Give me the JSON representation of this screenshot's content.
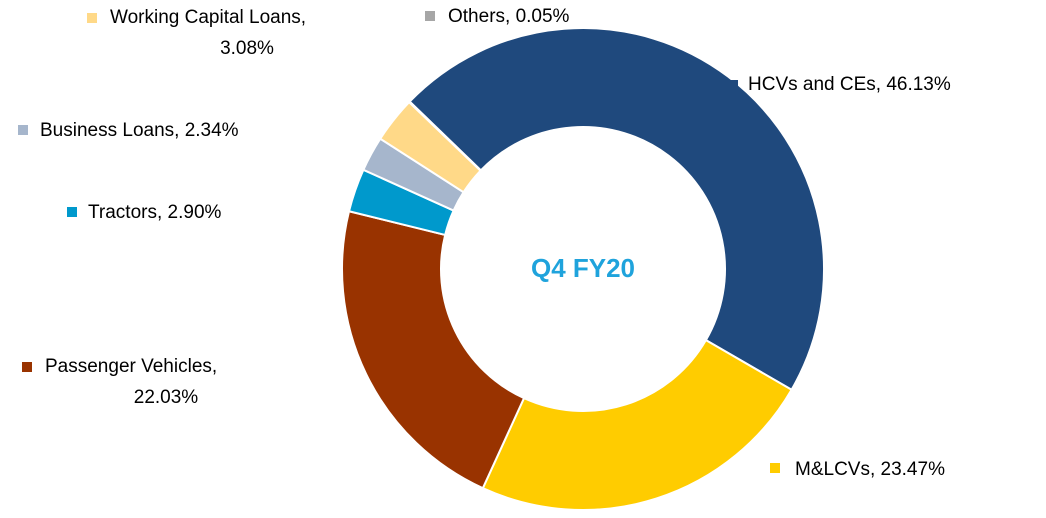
{
  "chart_data": {
    "type": "donut",
    "center_label": "Q4 FY20",
    "categories": [
      "HCVs and CEs",
      "M&LCVs",
      "Passenger Vehicles",
      "Tractors",
      "Business Loans",
      "Working Capital Loans",
      "Others"
    ],
    "values": [
      46.13,
      23.47,
      22.03,
      2.9,
      2.34,
      3.08,
      0.05
    ],
    "value_labels": [
      [
        "HCVs and CEs, 46.13%"
      ],
      [
        "M&LCVs, 23.47%"
      ],
      [
        "Passenger Vehicles,",
        "22.03%"
      ],
      [
        "Tractors, 2.90%"
      ],
      [
        "Business Loans, 2.34%"
      ],
      [
        "Working Capital Loans,",
        "3.08%"
      ],
      [
        "Others, 0.05%"
      ]
    ],
    "colors": [
      "#1f497d",
      "#ffcc00",
      "#993300",
      "#0099cc",
      "#a6b6cc",
      "#ffd988",
      "#a6a6a6"
    ]
  }
}
